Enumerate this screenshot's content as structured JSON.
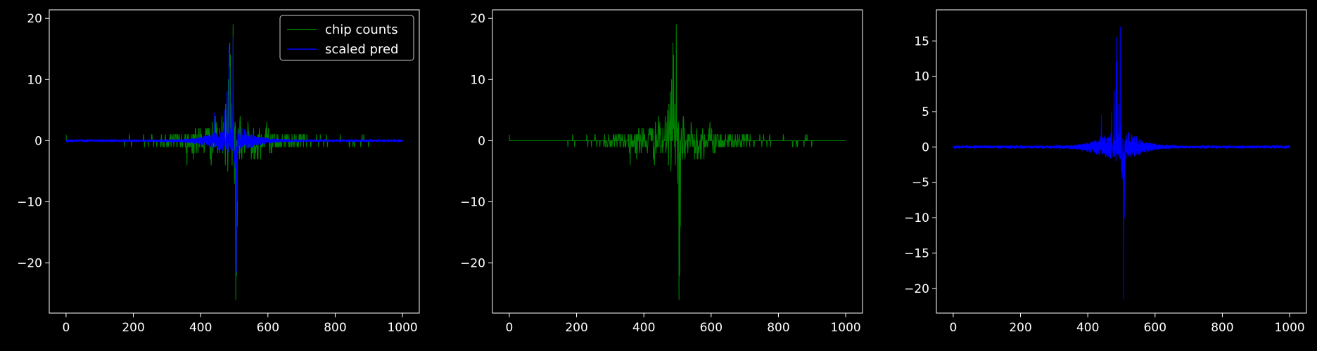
{
  "figure": {
    "background": "#000000",
    "foreground": "#ffffff"
  },
  "chart_data": [
    {
      "type": "line",
      "title": "",
      "xlabel": "",
      "ylabel": "",
      "xlim": [
        -50,
        1050
      ],
      "ylim": [
        -28.2,
        21.4
      ],
      "x_ticks": [
        0,
        200,
        400,
        600,
        800,
        1000
      ],
      "y_ticks": [
        -20,
        -10,
        0,
        10,
        20
      ],
      "x_tick_labels": [
        "0",
        "200",
        "400",
        "600",
        "800",
        "1000"
      ],
      "y_tick_labels": [
        "−20",
        "−10",
        "0",
        "10",
        "20"
      ],
      "grid": false,
      "legend": {
        "position": "top-right",
        "entries": [
          "chip counts",
          "scaled pred"
        ]
      },
      "series": [
        {
          "name": "chip counts",
          "color": "#008000",
          "kind": "counts"
        },
        {
          "name": "scaled pred",
          "color": "#0000ff",
          "kind": "pred"
        }
      ],
      "x_range": [
        0,
        1000
      ],
      "n_points": 1000
    },
    {
      "type": "line",
      "title": "",
      "xlabel": "",
      "ylabel": "",
      "xlim": [
        -50,
        1050
      ],
      "ylim": [
        -28.2,
        21.4
      ],
      "x_ticks": [
        0,
        200,
        400,
        600,
        800,
        1000
      ],
      "y_ticks": [
        -20,
        -10,
        0,
        10,
        20
      ],
      "x_tick_labels": [
        "0",
        "200",
        "400",
        "600",
        "800",
        "1000"
      ],
      "y_tick_labels": [
        "−20",
        "−10",
        "0",
        "10",
        "20"
      ],
      "grid": false,
      "series": [
        {
          "color": "#008000",
          "kind": "counts"
        }
      ],
      "x_range": [
        0,
        1000
      ],
      "n_points": 1000
    },
    {
      "type": "line",
      "title": "",
      "xlabel": "",
      "ylabel": "",
      "xlim": [
        -50,
        1050
      ],
      "ylim": [
        -23.5,
        19.4
      ],
      "x_ticks": [
        0,
        200,
        400,
        600,
        800,
        1000
      ],
      "y_ticks": [
        -20,
        -15,
        -10,
        -5,
        0,
        5,
        10,
        15
      ],
      "x_tick_labels": [
        "0",
        "200",
        "400",
        "600",
        "800",
        "1000"
      ],
      "y_tick_labels": [
        "−20",
        "−15",
        "−10",
        "−5",
        "0",
        "5",
        "10",
        "15"
      ],
      "grid": false,
      "series": [
        {
          "color": "#0000ff",
          "kind": "pred"
        }
      ],
      "x_range": [
        0,
        1000
      ],
      "n_points": 1000
    }
  ]
}
